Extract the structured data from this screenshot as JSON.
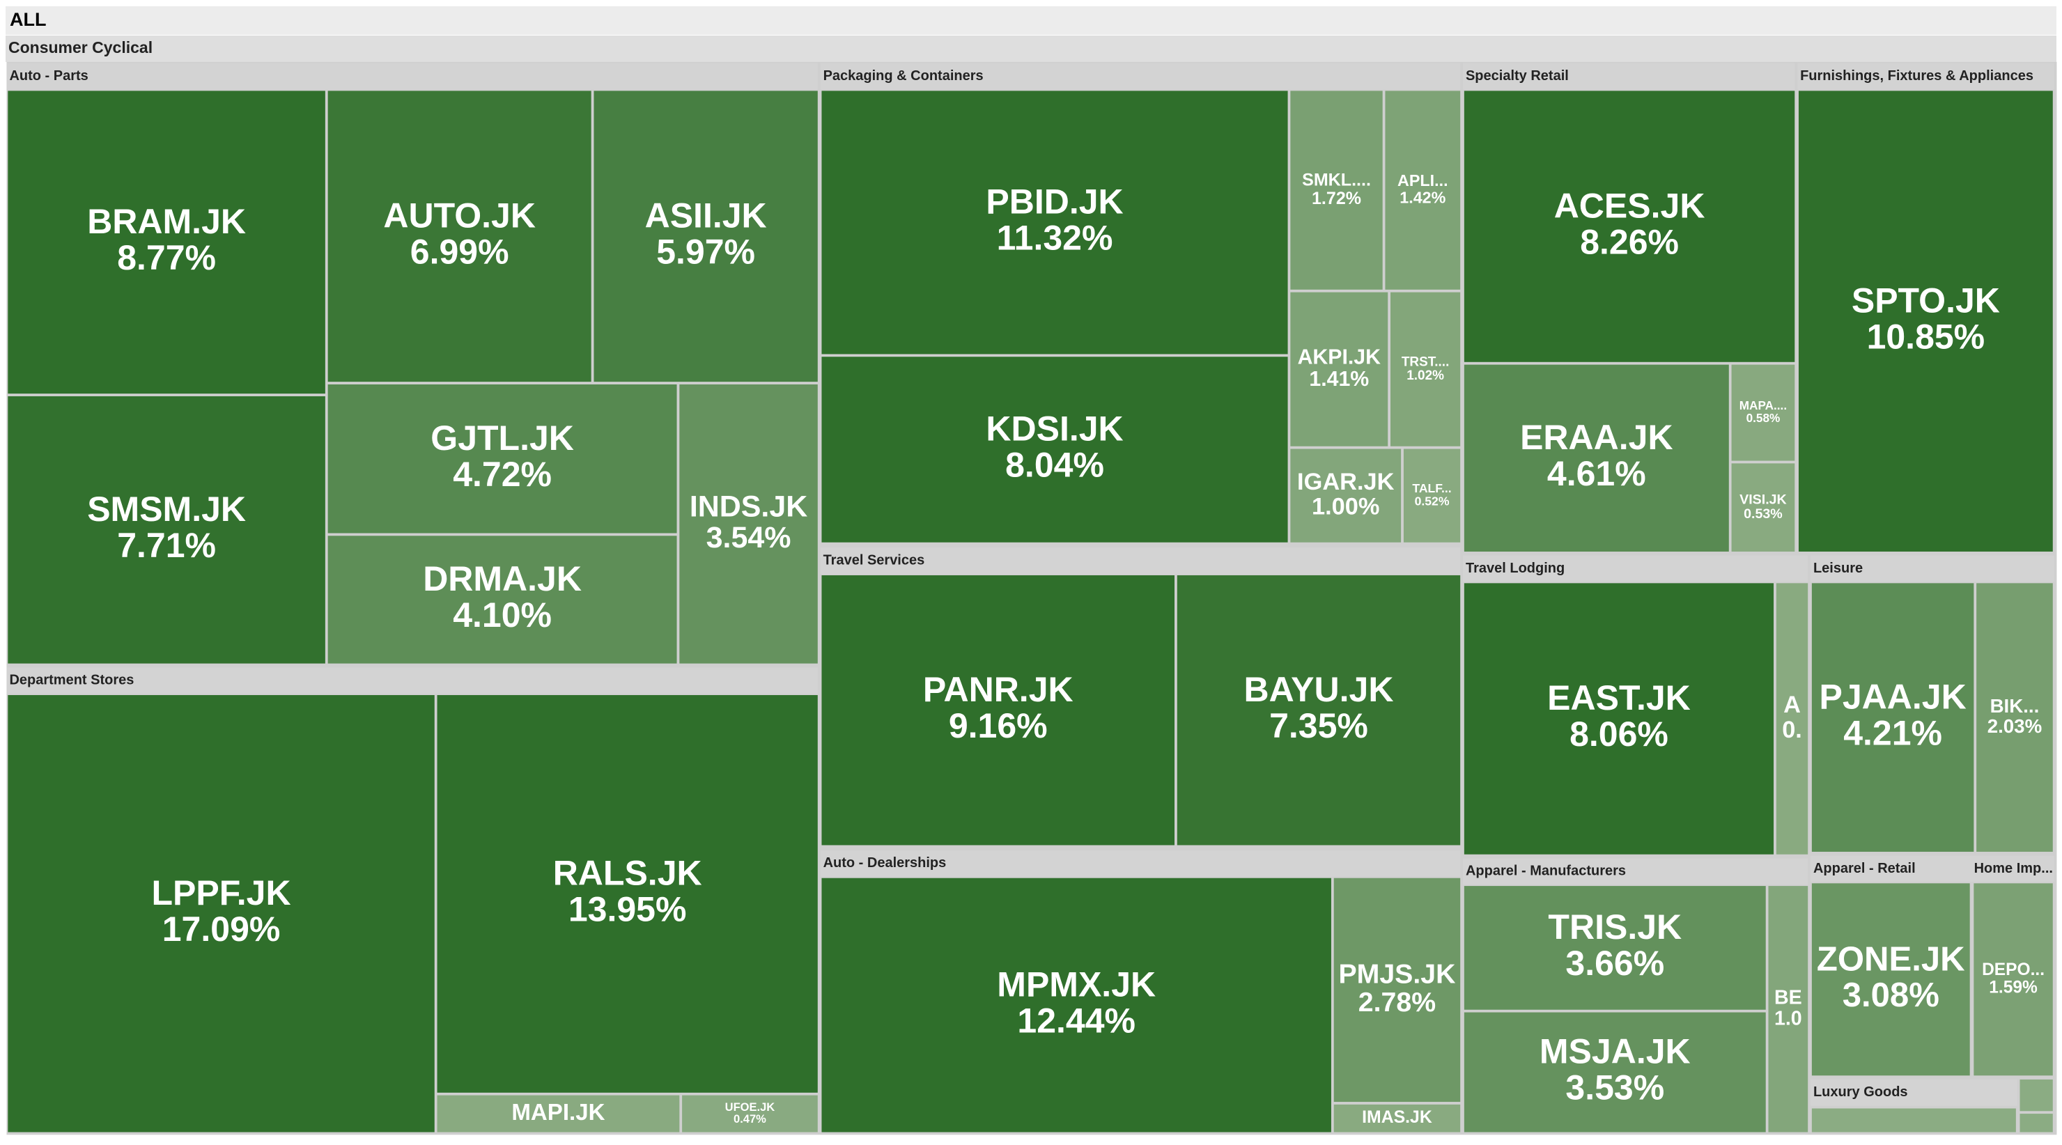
{
  "chart_data": {
    "type": "treemap",
    "title": "ALL",
    "subtitle": "Consumer Cyclical",
    "color_range": [
      "#8fae86",
      "#2f6f2b"
    ],
    "groups": [
      {
        "name": "Auto - Parts",
        "categories": [
          "BRAM.JK",
          "AUTO.JK",
          "ASII.JK",
          "SMSM.JK",
          "GJTL.JK",
          "DRMA.JK",
          "INDS.JK"
        ],
        "values": [
          8.77,
          6.99,
          5.97,
          7.71,
          4.72,
          4.1,
          3.54
        ],
        "value_labels": [
          "8.77%",
          "6.99%",
          "5.97%",
          "7.71%",
          "4.72%",
          "4.10%",
          "3.54%"
        ]
      },
      {
        "name": "Department Stores",
        "categories": [
          "LPPF.JK",
          "RALS.JK",
          "MAPI.JK",
          "UFOE.JK"
        ],
        "values": [
          17.09,
          13.95,
          0.5,
          0.47
        ],
        "value_labels": [
          "17.09%",
          "13.95%",
          null,
          "0.47%"
        ]
      },
      {
        "name": "Packaging & Containers",
        "categories": [
          "PBID.JK",
          "KDSI.JK",
          "SMKL....",
          "APLI...",
          "AKPI.JK",
          "TRST....",
          "IGAR.JK",
          "TALF..."
        ],
        "values": [
          11.32,
          8.04,
          1.72,
          1.42,
          1.41,
          1.02,
          1.0,
          0.52
        ],
        "value_labels": [
          "11.32%",
          "8.04%",
          "1.72%",
          "1.42%",
          "1.41%",
          "1.02%",
          "1.00%",
          "0.52%"
        ]
      },
      {
        "name": "Travel Services",
        "categories": [
          "PANR.JK",
          "BAYU.JK"
        ],
        "values": [
          9.16,
          7.35
        ],
        "value_labels": [
          "9.16%",
          "7.35%"
        ]
      },
      {
        "name": "Auto - Dealerships",
        "categories": [
          "MPMX.JK",
          "PMJS.JK",
          "IMAS.JK"
        ],
        "values": [
          12.44,
          2.78,
          0.5
        ],
        "value_labels": [
          "12.44%",
          "2.78%",
          null
        ]
      },
      {
        "name": "Specialty Retail",
        "categories": [
          "ACES.JK",
          "ERAA.JK",
          "MAPA....",
          "VISI.JK"
        ],
        "values": [
          8.26,
          4.61,
          0.58,
          0.53
        ],
        "value_labels": [
          "8.26%",
          "4.61%",
          "0.58%",
          "0.53%"
        ]
      },
      {
        "name": "Furnishings, Fixtures & Appliances",
        "categories": [
          "SPTO.JK"
        ],
        "values": [
          10.85
        ],
        "value_labels": [
          "10.85%"
        ]
      },
      {
        "name": "Travel Lodging",
        "categories": [
          "EAST.JK",
          "A"
        ],
        "values": [
          8.06,
          0.5
        ],
        "value_labels": [
          "8.06%",
          "0."
        ]
      },
      {
        "name": "Leisure",
        "categories": [
          "PJAA.JK",
          "BIK..."
        ],
        "values": [
          4.21,
          2.03
        ],
        "value_labels": [
          "4.21%",
          "2.03%"
        ]
      },
      {
        "name": "Apparel - Manufacturers",
        "categories": [
          "TRIS.JK",
          "MSJA.JK",
          "BE"
        ],
        "values": [
          3.66,
          3.53,
          1.0
        ],
        "value_labels": [
          "3.66%",
          "3.53%",
          "1.0"
        ]
      },
      {
        "name": "Apparel - Retail",
        "categories": [
          "ZONE.JK"
        ],
        "values": [
          3.08
        ],
        "value_labels": [
          "3.08%"
        ]
      },
      {
        "name": "Home Imp...",
        "categories": [
          "DEPO..."
        ],
        "values": [
          1.59
        ],
        "value_labels": [
          "1.59%"
        ]
      },
      {
        "name": "Luxury Goods",
        "categories": [
          null,
          null,
          null
        ],
        "values": [
          0.3,
          0.3,
          0.3
        ],
        "value_labels": [
          null,
          null,
          null
        ]
      }
    ]
  }
}
